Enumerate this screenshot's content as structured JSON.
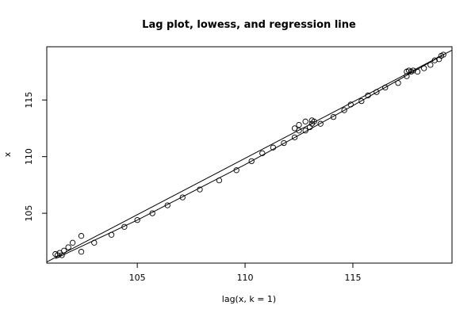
{
  "chart_data": {
    "type": "scatter",
    "title": "Lag plot, lowess, and regression line",
    "xlabel": "lag(x, k = 1)",
    "ylabel": "x",
    "xlim": [
      100.8,
      119.6
    ],
    "ylim": [
      100.6,
      119.7
    ],
    "xticks": [
      105,
      110,
      115
    ],
    "yticks": [
      105,
      110,
      115
    ],
    "grid": false,
    "points": [
      {
        "x": 101.2,
        "y": 101.4
      },
      {
        "x": 101.3,
        "y": 101.3
      },
      {
        "x": 101.4,
        "y": 101.5
      },
      {
        "x": 101.6,
        "y": 101.7
      },
      {
        "x": 101.5,
        "y": 101.3
      },
      {
        "x": 101.8,
        "y": 102.0
      },
      {
        "x": 102.0,
        "y": 102.4
      },
      {
        "x": 102.4,
        "y": 103.0
      },
      {
        "x": 102.4,
        "y": 101.6
      },
      {
        "x": 103.0,
        "y": 102.4
      },
      {
        "x": 103.8,
        "y": 103.1
      },
      {
        "x": 104.4,
        "y": 103.8
      },
      {
        "x": 105.0,
        "y": 104.4
      },
      {
        "x": 105.7,
        "y": 105.0
      },
      {
        "x": 106.4,
        "y": 105.7
      },
      {
        "x": 107.1,
        "y": 106.4
      },
      {
        "x": 107.9,
        "y": 107.1
      },
      {
        "x": 108.8,
        "y": 107.9
      },
      {
        "x": 109.6,
        "y": 108.8
      },
      {
        "x": 110.3,
        "y": 109.6
      },
      {
        "x": 110.8,
        "y": 110.3
      },
      {
        "x": 111.3,
        "y": 110.8
      },
      {
        "x": 111.8,
        "y": 111.2
      },
      {
        "x": 112.3,
        "y": 111.7
      },
      {
        "x": 112.3,
        "y": 112.5
      },
      {
        "x": 112.5,
        "y": 112.8
      },
      {
        "x": 112.5,
        "y": 112.3
      },
      {
        "x": 112.8,
        "y": 113.1
      },
      {
        "x": 112.8,
        "y": 112.3
      },
      {
        "x": 113.0,
        "y": 112.6
      },
      {
        "x": 113.1,
        "y": 112.9
      },
      {
        "x": 113.1,
        "y": 113.2
      },
      {
        "x": 113.2,
        "y": 113.1
      },
      {
        "x": 113.5,
        "y": 112.9
      },
      {
        "x": 114.1,
        "y": 113.5
      },
      {
        "x": 114.6,
        "y": 114.1
      },
      {
        "x": 114.9,
        "y": 114.6
      },
      {
        "x": 115.4,
        "y": 114.9
      },
      {
        "x": 115.7,
        "y": 115.4
      },
      {
        "x": 116.1,
        "y": 115.7
      },
      {
        "x": 116.5,
        "y": 116.1
      },
      {
        "x": 117.1,
        "y": 116.5
      },
      {
        "x": 117.5,
        "y": 117.1
      },
      {
        "x": 117.5,
        "y": 117.5
      },
      {
        "x": 117.6,
        "y": 117.6
      },
      {
        "x": 117.7,
        "y": 117.5
      },
      {
        "x": 117.8,
        "y": 117.6
      },
      {
        "x": 118.0,
        "y": 117.5
      },
      {
        "x": 118.3,
        "y": 117.8
      },
      {
        "x": 118.6,
        "y": 118.1
      },
      {
        "x": 118.8,
        "y": 118.5
      },
      {
        "x": 119.0,
        "y": 118.6
      },
      {
        "x": 119.1,
        "y": 118.9
      },
      {
        "x": 119.2,
        "y": 119.0
      }
    ],
    "lines": [
      {
        "name": "",
        "x": [
          100.8,
          119.6
        ],
        "y": [
          100.7,
          119.4
        ]
      },
      {
        "name": "",
        "x": [
          101.2,
          105.0,
          110.0,
          115.0,
          119.2
        ],
        "y": [
          101.0,
          104.4,
          109.3,
          114.5,
          119.0
        ]
      }
    ]
  }
}
